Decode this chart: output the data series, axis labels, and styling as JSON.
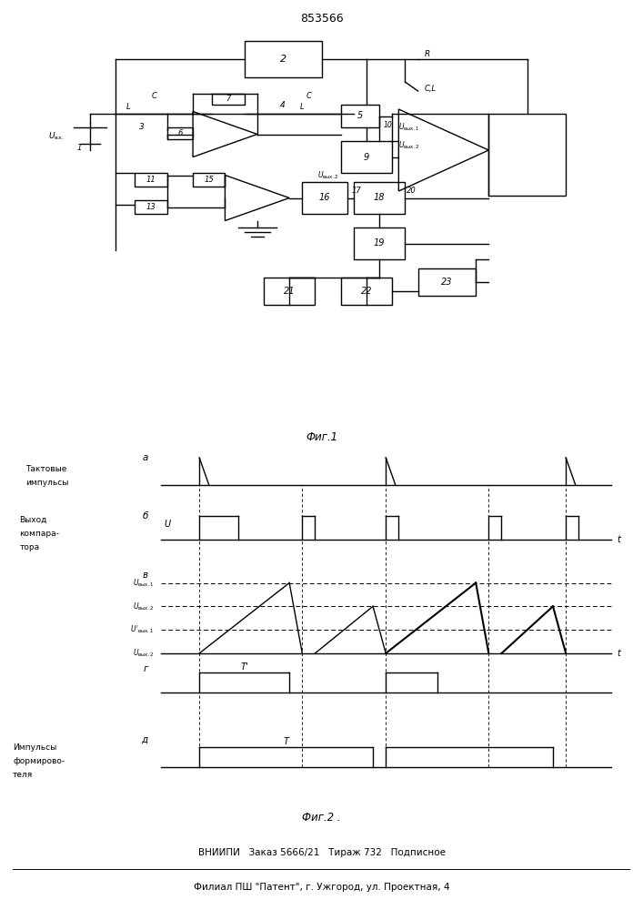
{
  "title": "853566",
  "fig1_caption": "Фиг.1",
  "fig2_caption": "Фиг.2 .",
  "footer_line1": "ВНИИПИ   Заказ 5666/21   Тираж 732   Подписное",
  "footer_line2": "Филиал ПШ \"Патент\", г. Ужгород, ул. Проектная, 4",
  "bg_color": "#ffffff",
  "line_color": "#000000"
}
